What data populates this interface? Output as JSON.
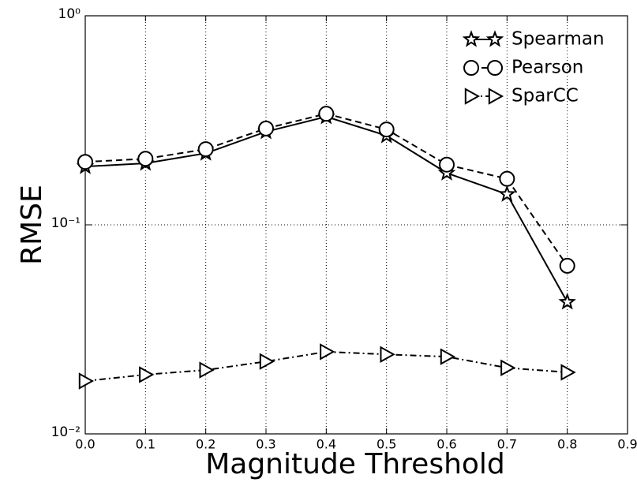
{
  "chart_data": {
    "type": "line",
    "xlabel": "Magnitude Threshold",
    "ylabel": "RMSE",
    "x": [
      0,
      0.1,
      0.2,
      0.3,
      0.4,
      0.5,
      0.6,
      0.7,
      0.8
    ],
    "series": [
      {
        "name": "Spearman",
        "color": "#000000",
        "linestyle": "solid",
        "marker": "star",
        "values": [
          0.19,
          0.197,
          0.22,
          0.279,
          0.329,
          0.267,
          0.177,
          0.14,
          0.0427
        ]
      },
      {
        "name": "Pearson",
        "color": "#000000",
        "linestyle": "dashed",
        "marker": "circle",
        "values": [
          0.2,
          0.207,
          0.23,
          0.289,
          0.34,
          0.286,
          0.194,
          0.166,
          0.0637
        ]
      },
      {
        "name": "SparCC",
        "color": "#000000",
        "linestyle": "dashdot",
        "marker": "triangle",
        "values": [
          0.0179,
          0.0192,
          0.0202,
          0.0222,
          0.0247,
          0.024,
          0.0234,
          0.0207,
          0.0197
        ]
      }
    ],
    "xlim": [
      0,
      0.9
    ],
    "xticks": [
      {
        "value": 0,
        "label": "0.0"
      },
      0.1,
      0.2,
      0.3,
      0.4,
      0.5,
      0.6,
      0.7,
      0.8,
      0.9
    ],
    "ylim": [
      0.01,
      1
    ],
    "yscale": "log",
    "yticks": [
      {
        "value": 0.01,
        "label": "10⁻²"
      },
      {
        "value": 0.1,
        "label": "10⁻¹"
      },
      {
        "value": 1,
        "label": "10⁰"
      }
    ],
    "grid": true,
    "legend": "upper right"
  }
}
